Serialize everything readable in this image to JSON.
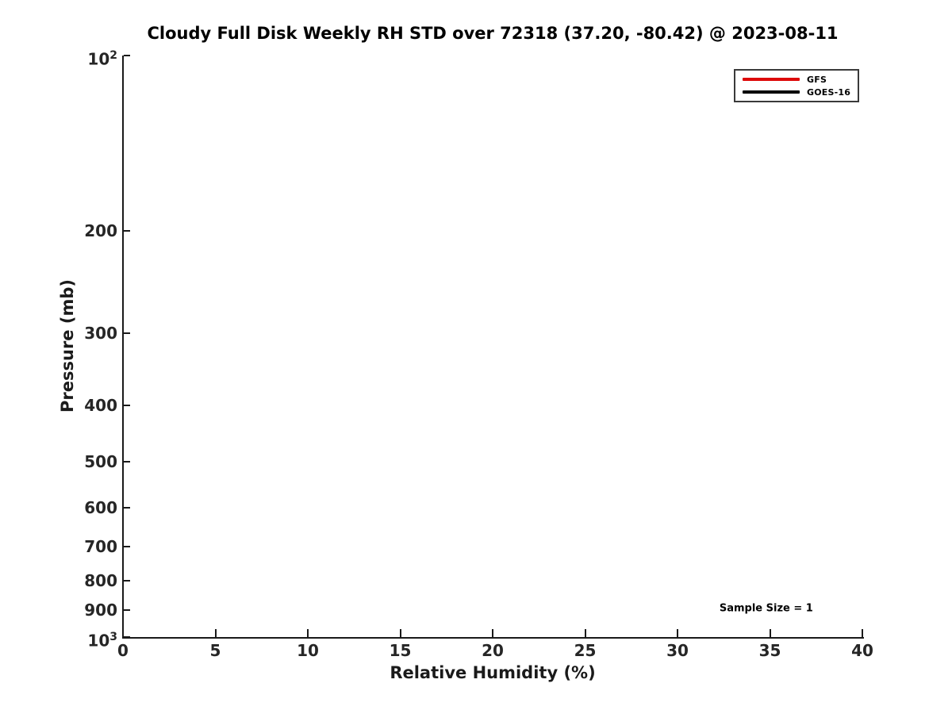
{
  "chart_data": {
    "type": "line",
    "title": "Cloudy Full Disk Weekly RH STD over 72318 (37.20, -80.42) @ 2023-08-11",
    "xlabel": "Relative Humidity (%)",
    "ylabel": "Pressure (mb)",
    "xlim": [
      0,
      40
    ],
    "x_ticks": [
      0,
      5,
      10,
      15,
      20,
      25,
      30,
      35,
      40
    ],
    "yscale": "log",
    "ylim": [
      100,
      1000
    ],
    "y_axis_direction": "increasing-downward",
    "y_ticks": [
      {
        "value": 100,
        "label": "10^2"
      },
      {
        "value": 200,
        "label": "200"
      },
      {
        "value": 300,
        "label": "300"
      },
      {
        "value": 400,
        "label": "400"
      },
      {
        "value": 500,
        "label": "500"
      },
      {
        "value": 600,
        "label": "600"
      },
      {
        "value": 700,
        "label": "700"
      },
      {
        "value": 800,
        "label": "800"
      },
      {
        "value": 900,
        "label": "900"
      },
      {
        "value": 1000,
        "label": "10^3"
      }
    ],
    "grid": false,
    "legend_position": "top-right",
    "series": [
      {
        "name": "GFS",
        "color": "#dd0a0a",
        "x": [],
        "y": []
      },
      {
        "name": "GOES-16",
        "color": "#000000",
        "x": [],
        "y": []
      }
    ],
    "annotations": [
      {
        "text": "Sample Size = 1",
        "x": 34.8,
        "y": 893
      }
    ]
  }
}
